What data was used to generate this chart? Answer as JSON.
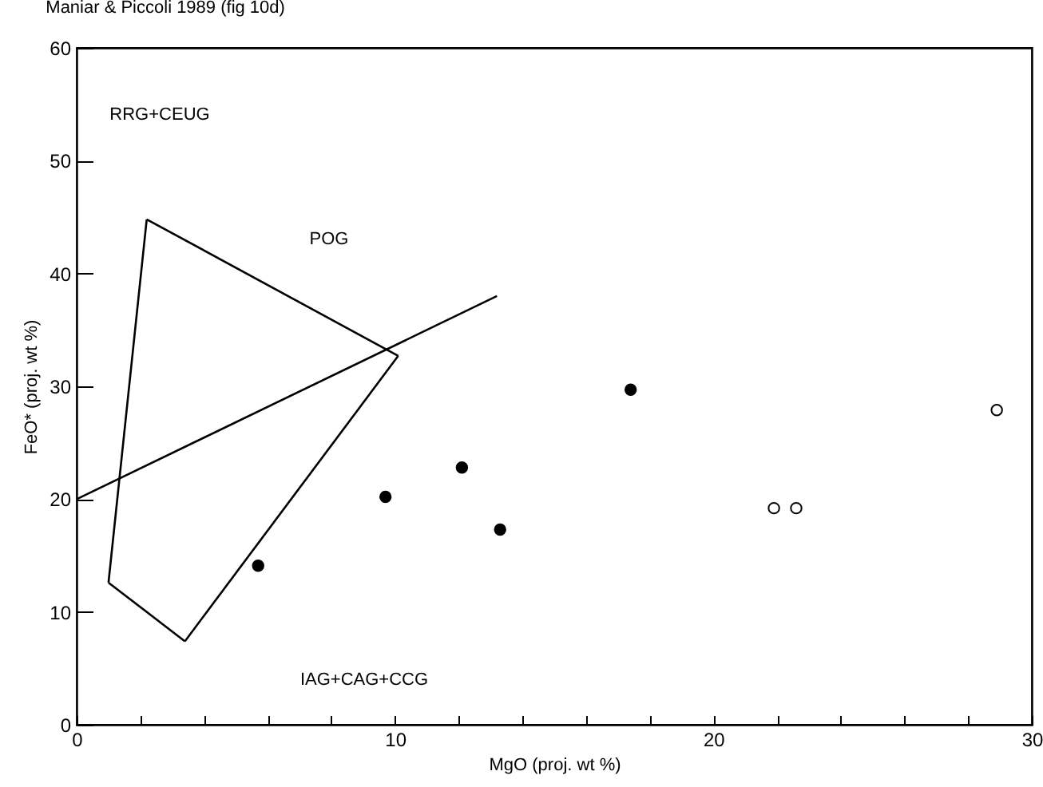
{
  "chart_data": {
    "type": "scatter",
    "title": "Maniar & Piccoli 1989 (fig 10d)",
    "xlabel": "MgO  (proj. wt %)",
    "ylabel": "FeO*  (proj. wt %)",
    "xlim": [
      0,
      30
    ],
    "ylim": [
      0,
      60
    ],
    "xticks": [
      0,
      {
        "value": 2,
        "label": null
      },
      {
        "value": 4,
        "label": null
      },
      {
        "value": 6,
        "label": null
      },
      {
        "value": 8,
        "label": null
      },
      10,
      {
        "value": 12,
        "label": null
      },
      {
        "value": 14,
        "label": null
      },
      {
        "value": 16,
        "label": null
      },
      {
        "value": 18,
        "label": null
      },
      20,
      {
        "value": 22,
        "label": null
      },
      {
        "value": 24,
        "label": null
      },
      {
        "value": 26,
        "label": null
      },
      {
        "value": 28,
        "label": null
      },
      30
    ],
    "yticks": [
      0,
      10,
      20,
      30,
      40,
      50,
      60
    ],
    "grid": false,
    "marker": "circle",
    "series": [
      {
        "type": "line",
        "marker": "none",
        "color": "#000000",
        "x": [
          1.0,
          2.2
        ],
        "values": [
          12.6,
          44.8
        ]
      },
      {
        "type": "line",
        "marker": "none",
        "color": "#000000",
        "x": [
          2.2,
          10.1
        ],
        "values": [
          44.8,
          32.7
        ]
      },
      {
        "type": "line",
        "marker": "none",
        "color": "#000000",
        "x": [
          3.4,
          10.1
        ],
        "values": [
          7.4,
          32.7
        ]
      },
      {
        "type": "line",
        "marker": "none",
        "color": "#000000",
        "x": [
          1.0,
          3.4
        ],
        "values": [
          12.6,
          7.4
        ]
      },
      {
        "type": "line",
        "marker": "none",
        "color": "#000000",
        "x": [
          0,
          13.2
        ],
        "values": [
          20,
          38
        ]
      },
      {
        "color": "#000000",
        "x": [
          5.7,
          9.7,
          12.1,
          13.3,
          17.4
        ],
        "values": [
          14.1,
          20.2,
          22.8,
          17.3,
          29.7
        ]
      },
      {
        "color": "#ffffff",
        "x": [
          21.9,
          22.6,
          28.9
        ],
        "values": [
          19.2,
          19.2,
          27.9
        ]
      }
    ],
    "annotations": [
      "RRG+CEUG",
      "POG",
      "IAG+CAG+CCG"
    ]
  }
}
